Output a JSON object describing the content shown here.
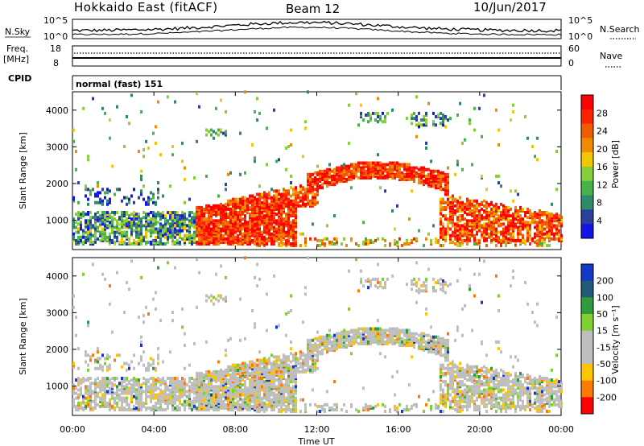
{
  "header": {
    "title": "Hokkaido East (fitACF)",
    "beam": "Beam 12",
    "date": "10/Jun/2017"
  },
  "colors": {
    "power_scale": [
      "#1414e6",
      "#2a3fa0",
      "#2f8a6a",
      "#45b34a",
      "#86cf3a",
      "#f2c600",
      "#f08a00",
      "#f05a00",
      "#ff2200",
      "#ff0000"
    ],
    "velocity_scale": [
      "#ff0000",
      "#ff7a00",
      "#ffc400",
      "#bebebe",
      "#bebebe",
      "#7fd12e",
      "#2f9b3a",
      "#1f5a78",
      "#1438c8"
    ]
  },
  "chart_data": [
    {
      "type": "line",
      "name": "noise-panel",
      "left_label": "N.Sky",
      "right_label": "N.Search",
      "left_ticks": [
        "10^5",
        "10^0"
      ],
      "right_ticks": [
        "10^5",
        "10^0"
      ],
      "right_legend_style": "dotted"
    },
    {
      "type": "line",
      "name": "frequency-panel",
      "left_label": [
        "Freq.",
        "[MHz]"
      ],
      "right_label": "Nave",
      "left_ticks": [
        "18",
        "8"
      ],
      "right_ticks": [
        "60",
        "0"
      ],
      "right_legend_style": "dotted"
    },
    {
      "type": "table",
      "name": "cpid-panel",
      "label": "CPID",
      "value": "normal (fast) 151"
    },
    {
      "type": "heatmap",
      "name": "power-panel",
      "ylabel": "Slant Range [km]",
      "y_ticks": [
        1000,
        2000,
        3000,
        4000
      ],
      "colorbar_label": "Power [dB]",
      "colorbar_ticks": [
        "28",
        "24",
        "20",
        "16",
        "12",
        "8",
        "4"
      ]
    },
    {
      "type": "heatmap",
      "name": "velocity-panel",
      "ylabel": "Slant Range [km]",
      "y_ticks": [
        1000,
        2000,
        3000,
        4000
      ],
      "colorbar_label": "Velocity [m s⁻¹]",
      "colorbar_ticks": [
        "200",
        "100",
        "50",
        "15",
        "-15",
        "-50",
        "-100",
        "-200"
      ],
      "xlabel": "Time UT",
      "x_ticks": [
        "00:00",
        "04:00",
        "08:00",
        "12:00",
        "16:00",
        "20:00",
        "00:00"
      ]
    }
  ]
}
